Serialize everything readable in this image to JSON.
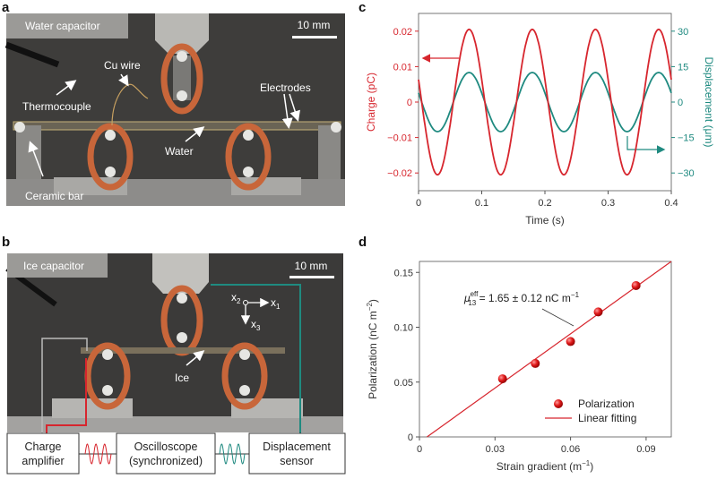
{
  "panels": {
    "a": {
      "letter": "a",
      "title": "Water capacitor",
      "scale_bar": "10 mm",
      "labels": {
        "cu_wire": "Cu wire",
        "thermocouple": "Thermocouple",
        "electrodes": "Electrodes",
        "water": "Water",
        "ceramic_bar": "Ceramic bar"
      }
    },
    "b": {
      "letter": "b",
      "title": "Ice capacitor",
      "scale_bar": "10 mm",
      "labels": {
        "ice": "Ice",
        "x1": "x",
        "x1_sub": "1",
        "x2": "x",
        "x2_sub": "2",
        "x3": "x",
        "x3_sub": "3"
      },
      "boxes": {
        "charge_amplifier": [
          "Charge",
          "amplifier"
        ],
        "oscilloscope": [
          "Oscilloscope",
          "(synchronized)"
        ],
        "displacement_sensor": [
          "Displacement",
          "sensor"
        ]
      }
    },
    "c": {
      "letter": "c"
    },
    "d": {
      "letter": "d"
    }
  },
  "colors": {
    "charge": "#d7262e",
    "displacement": "#1f8a80",
    "polarization": "#d7262e",
    "photo_bg": "#3e3d3b",
    "copper": "#c8663a"
  },
  "chart_data": [
    {
      "type": "line",
      "panel": "c",
      "xlabel": "Time (s)",
      "ylabel": "Charge (pC)",
      "y2label": "Displacement (μm)",
      "xlim": [
        0,
        0.4
      ],
      "ylim": [
        -0.025,
        0.025
      ],
      "y2lim": [
        -37.5,
        37.5
      ],
      "xticks": [
        "0",
        "0.1",
        "0.2",
        "0.3",
        "0.4"
      ],
      "yticks": [
        "0.02",
        "0.01",
        "0",
        "−0.01",
        "−0.02"
      ],
      "yticks_values": [
        0.02,
        0.01,
        0,
        -0.01,
        -0.02
      ],
      "y2ticks": [
        "30",
        "15",
        "0",
        "−15",
        "−30"
      ],
      "y2ticks_values": [
        30,
        15,
        0,
        -15,
        -30
      ],
      "xticks_values": [
        0,
        0.1,
        0.2,
        0.3,
        0.4
      ],
      "series": [
        {
          "name": "Charge",
          "axis": "left",
          "amplitude": 0.0205,
          "period": 0.1,
          "peak_time": 0.08
        },
        {
          "name": "Displacement",
          "axis": "right",
          "amplitude": 12.5,
          "period": 0.1,
          "peak_time": 0.08
        }
      ],
      "grid": false
    },
    {
      "type": "scatter",
      "panel": "d",
      "xlabel": "Strain gradient (m",
      "xlabel_sup": "−1",
      "xlabel_end": ")",
      "ylabel": "Polarization (nC m",
      "ylabel_sup": "−2",
      "ylabel_end": ")",
      "xlim": [
        0,
        0.1
      ],
      "ylim": [
        0,
        0.16
      ],
      "xticks": [
        "0",
        "0.03",
        "0.06",
        "0.09"
      ],
      "xticks_values": [
        0,
        0.03,
        0.06,
        0.09
      ],
      "yticks": [
        "0",
        "0.05",
        "0.10",
        "0.15"
      ],
      "yticks_values": [
        0,
        0.05,
        0.1,
        0.15
      ],
      "series": [
        {
          "name": "Polarization",
          "x": [
            0.033,
            0.046,
            0.06,
            0.071,
            0.086
          ],
          "y": [
            0.053,
            0.067,
            0.087,
            0.114,
            0.138
          ]
        },
        {
          "name": "Linear fitting",
          "x": [
            0.003,
            0.1
          ],
          "y": [
            0,
            0.16
          ]
        }
      ],
      "annotation": {
        "symbol": "μ",
        "sub": "13",
        "sup": "eff",
        "text": " = 1.65 ± 0.12 nC m",
        "text_sup": "−1"
      },
      "legend": "bottom-right",
      "grid": false
    }
  ]
}
